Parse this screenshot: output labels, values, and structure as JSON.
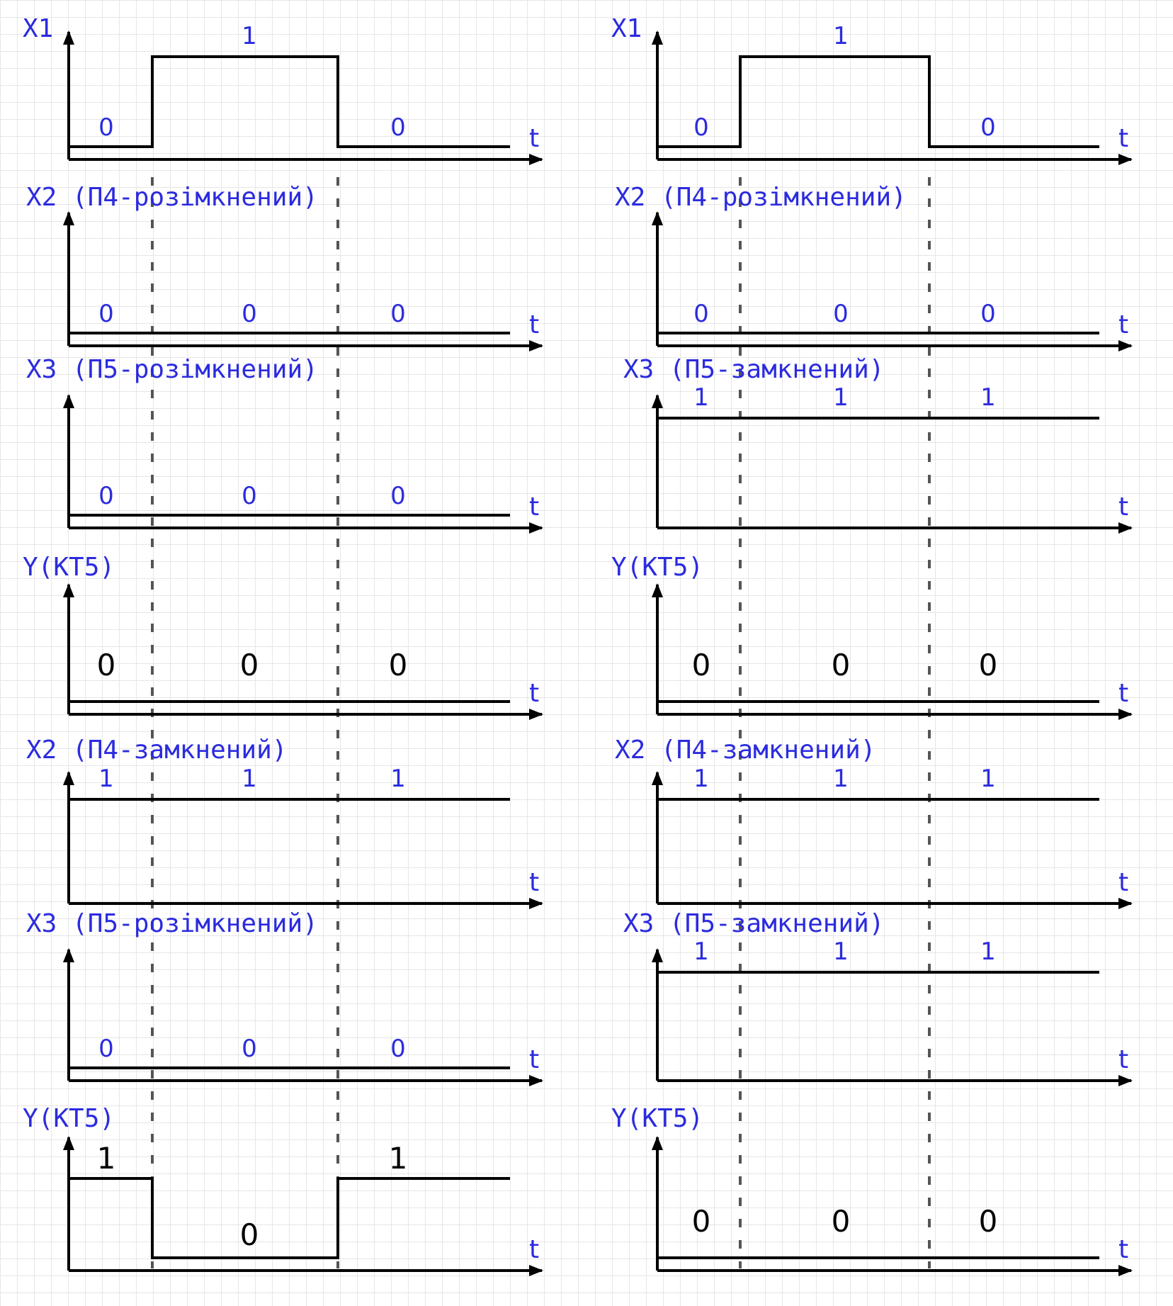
{
  "colors": {
    "label": "#2b2bdf",
    "signal": "#000000",
    "dashed": "#555555"
  },
  "axis_label": "t",
  "columns": [
    {
      "panels": [
        {
          "title": "X1",
          "values": [
            "0",
            "1",
            "0"
          ],
          "levels": [
            0,
            1,
            0
          ],
          "label_style": "blue"
        },
        {
          "title": "X2 (П4-розімкнений)",
          "values": [
            "0",
            "0",
            "0"
          ],
          "levels": [
            0,
            0,
            0
          ],
          "label_style": "blue"
        },
        {
          "title": "X3 (П5-розімкнений)",
          "values": [
            "0",
            "0",
            "0"
          ],
          "levels": [
            0,
            0,
            0
          ],
          "label_style": "blue"
        },
        {
          "title": "Y(KT5)",
          "values": [
            "0",
            "0",
            "0"
          ],
          "levels": [
            0,
            0,
            0
          ],
          "label_style": "black"
        },
        {
          "title": "X2 (П4-замкнений)",
          "values": [
            "1",
            "1",
            "1"
          ],
          "levels": [
            1,
            1,
            1
          ],
          "label_style": "blue"
        },
        {
          "title": "X3 (П5-розімкнений)",
          "values": [
            "0",
            "0",
            "0"
          ],
          "levels": [
            0,
            0,
            0
          ],
          "label_style": "blue"
        },
        {
          "title": "Y(KT5)",
          "values": [
            "1",
            "0",
            "1"
          ],
          "levels": [
            1,
            0,
            1
          ],
          "label_style": "black"
        }
      ]
    },
    {
      "panels": [
        {
          "title": "X1",
          "values": [
            "0",
            "1",
            "0"
          ],
          "levels": [
            0,
            1,
            0
          ],
          "label_style": "blue"
        },
        {
          "title": "X2 (П4-розімкнений)",
          "values": [
            "0",
            "0",
            "0"
          ],
          "levels": [
            0,
            0,
            0
          ],
          "label_style": "blue"
        },
        {
          "title": "X3 (П5-замкнений)",
          "values": [
            "1",
            "1",
            "1"
          ],
          "levels": [
            1,
            1,
            1
          ],
          "label_style": "blue"
        },
        {
          "title": "Y(KT5)",
          "values": [
            "0",
            "0",
            "0"
          ],
          "levels": [
            0,
            0,
            0
          ],
          "label_style": "black"
        },
        {
          "title": "X2 (П4-замкнений)",
          "values": [
            "1",
            "1",
            "1"
          ],
          "levels": [
            1,
            1,
            1
          ],
          "label_style": "blue"
        },
        {
          "title": "X3 (П5-замкнений)",
          "values": [
            "1",
            "1",
            "1"
          ],
          "levels": [
            1,
            1,
            1
          ],
          "label_style": "blue"
        },
        {
          "title": "Y(KT5)",
          "values": [
            "0",
            "0",
            "0"
          ],
          "levels": [
            0,
            0,
            0
          ],
          "label_style": "black"
        }
      ]
    }
  ]
}
